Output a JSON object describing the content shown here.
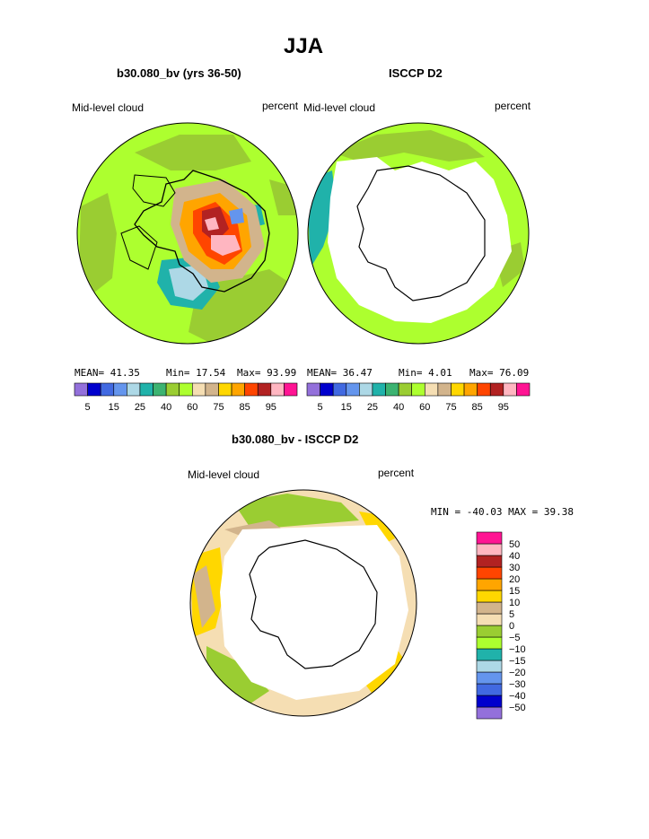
{
  "page": {
    "title": "JJA",
    "left_subtitle": "b30.080_bv (yrs 36-50)",
    "right_subtitle": "ISCCP D2",
    "diff_subtitle": "b30.080_bv - ISCCP D2"
  },
  "panels": {
    "model": {
      "variable_label": "Mid-level cloud",
      "units_label": "percent",
      "mean_text": "MEAN=  41.35",
      "min_text": "Min=  17.54",
      "max_text": "Max=  93.99"
    },
    "obs": {
      "variable_label": "Mid-level cloud",
      "units_label": "percent",
      "mean_text": "MEAN=  36.47",
      "min_text": "Min=   4.01",
      "max_text": "Max=  76.09"
    },
    "diff": {
      "variable_label": "Mid-level cloud",
      "units_label": "percent",
      "minmax_text": "MIN = -40.03 MAX =  39.38"
    }
  },
  "chart_data": [
    {
      "type": "heatmap",
      "projection": "south-polar-stereographic",
      "title": "b30.080_bv (yrs 36-50)",
      "variable": "Mid-level cloud",
      "units": "percent",
      "mean": 41.35,
      "min": 17.54,
      "max": 93.99,
      "levels": [
        5,
        10,
        15,
        20,
        25,
        30,
        40,
        50,
        60,
        70,
        75,
        80,
        85,
        90,
        95
      ],
      "level_labels": [
        "5",
        "15",
        "25",
        "40",
        "60",
        "75",
        "85",
        "95"
      ],
      "colors": [
        "#9370db",
        "#0000cd",
        "#4169e1",
        "#6495ed",
        "#add8e6",
        "#20b2aa",
        "#3cb371",
        "#9acd32",
        "#adff2f",
        "#f5deb3",
        "#d2b48c",
        "#ffd700",
        "#ffa500",
        "#ff4500",
        "#b22222",
        "#ffb6c1",
        "#ff1493"
      ]
    },
    {
      "type": "heatmap",
      "projection": "south-polar-stereographic",
      "title": "ISCCP D2",
      "variable": "Mid-level cloud",
      "units": "percent",
      "mean": 36.47,
      "min": 4.01,
      "max": 76.09,
      "levels": [
        5,
        10,
        15,
        20,
        25,
        30,
        40,
        50,
        60,
        70,
        75,
        80,
        85,
        90,
        95
      ],
      "level_labels": [
        "5",
        "15",
        "25",
        "40",
        "60",
        "75",
        "85",
        "95"
      ],
      "colors": [
        "#9370db",
        "#0000cd",
        "#4169e1",
        "#6495ed",
        "#add8e6",
        "#20b2aa",
        "#3cb371",
        "#9acd32",
        "#adff2f",
        "#f5deb3",
        "#d2b48c",
        "#ffd700",
        "#ffa500",
        "#ff4500",
        "#b22222",
        "#ffb6c1",
        "#ff1493"
      ]
    },
    {
      "type": "heatmap",
      "projection": "south-polar-stereographic",
      "title": "b30.080_bv - ISCCP D2",
      "variable": "Mid-level cloud",
      "units": "percent",
      "min": -40.03,
      "max": 39.38,
      "levels": [
        -50,
        -40,
        -30,
        -20,
        -15,
        -10,
        -5,
        0,
        5,
        10,
        15,
        20,
        30,
        40,
        50
      ],
      "level_labels": [
        "50",
        "40",
        "30",
        "20",
        "15",
        "10",
        "5",
        "0",
        "−5",
        "−10",
        "−15",
        "−20",
        "−30",
        "−40",
        "−50"
      ],
      "colors": [
        "#9370db",
        "#0000cd",
        "#4169e1",
        "#6495ed",
        "#add8e6",
        "#20b2aa",
        "#adff2f",
        "#9acd32",
        "#f5deb3",
        "#d2b48c",
        "#ffd700",
        "#ffa500",
        "#ff4500",
        "#b22222",
        "#ffb6c1",
        "#ff1493"
      ]
    }
  ]
}
